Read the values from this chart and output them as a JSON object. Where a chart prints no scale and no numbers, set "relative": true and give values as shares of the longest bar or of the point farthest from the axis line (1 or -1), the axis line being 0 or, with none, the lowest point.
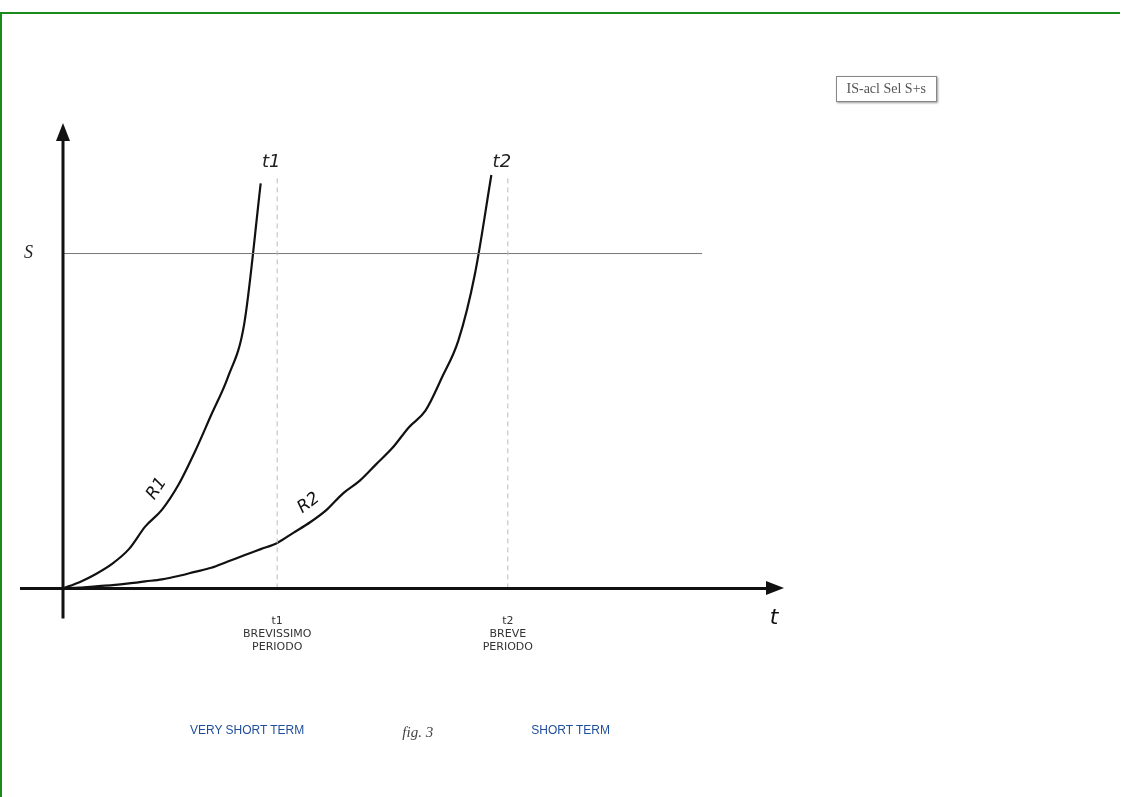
{
  "chart_data": {
    "type": "line",
    "relative": true,
    "xlabel": "t",
    "marker": "none",
    "line_style": "solid",
    "categories": [
      null,
      null,
      null,
      null,
      null,
      null,
      null,
      null,
      null,
      null,
      null,
      null,
      null,
      "t1\nBREVISSIMO\nPERIODO",
      null,
      null,
      null,
      null,
      null,
      null,
      null,
      null,
      null,
      null,
      null,
      null,
      null,
      "t2\nBREVE\nPERIODO",
      null,
      null,
      null,
      null,
      null,
      null,
      null,
      null,
      null,
      null,
      null,
      null,
      null
    ],
    "series": [
      {
        "name": "R1",
        "color": "#111111",
        "values": [
          0,
          0.015,
          0.035,
          0.06,
          0.095,
          0.15,
          0.19,
          0.25,
          0.33,
          0.42,
          0.51,
          0.64,
          0.98,
          null,
          null,
          null,
          null,
          null,
          null,
          null,
          null,
          null,
          null,
          null,
          null,
          null,
          null,
          null,
          null,
          null,
          null,
          null,
          null,
          null,
          null,
          null,
          null,
          null,
          null,
          null,
          null
        ]
      },
      {
        "name": "R2",
        "color": "#111111",
        "values": [
          0,
          0.002,
          0.005,
          0.008,
          0.012,
          0.017,
          0.022,
          0.03,
          0.04,
          0.05,
          0.065,
          0.08,
          0.095,
          0.11,
          0.135,
          0.16,
          0.19,
          0.23,
          0.26,
          0.3,
          0.34,
          0.39,
          0.43,
          0.51,
          0.6,
          0.76,
          1,
          null,
          null,
          null,
          null,
          null,
          null,
          null,
          null,
          null,
          null,
          null,
          null,
          null,
          null
        ]
      }
    ],
    "ref_lines": [
      {
        "axis": "y",
        "value": 0.81,
        "label": "S",
        "color": "#777777",
        "line_style": "solid"
      },
      {
        "axis": "x",
        "value": "t1\nBREVISSIMO\nPERIODO",
        "label": "t1",
        "color": "#bbbbbb",
        "line_style": "dashed"
      },
      {
        "axis": "x",
        "value": "t2\nBREVE\nPERIODO",
        "label": "t2",
        "color": "#bbbbbb",
        "line_style": "dashed"
      }
    ],
    "annotations": [
      "IS-acl Sel S+s",
      "VERY SHORT TERM",
      "fig. 3",
      "SHORT TERM"
    ]
  }
}
